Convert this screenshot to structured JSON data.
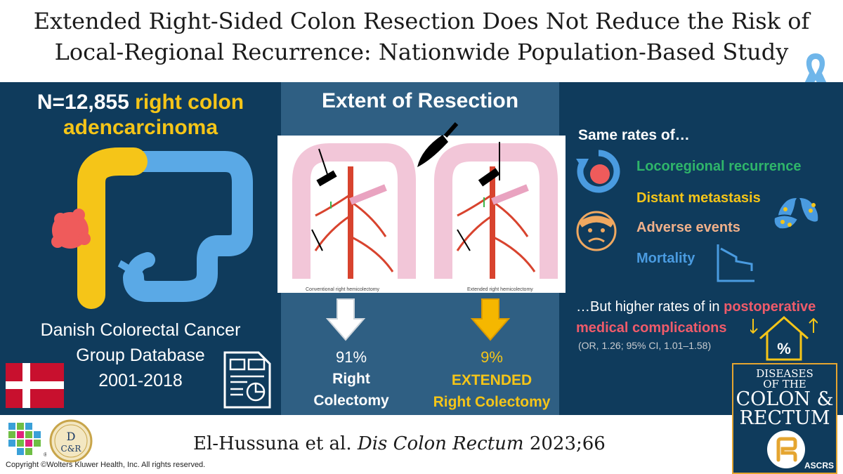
{
  "title": {
    "line1": "Extended Right-Sided Colon Resection Does Not Reduce the Risk of",
    "line2": "Local-Regional Recurrence: Nationwide Population-Based Study"
  },
  "left": {
    "n_label": "N=12,855",
    "n_highlight_line1": "right colon",
    "n_highlight_line2": "adencarcinoma",
    "db_line1": "Danish Colorectal Cancer",
    "db_line2": "Group Database",
    "db_line3": "2001-2018"
  },
  "center": {
    "title": "Extent of Resection",
    "caption_left": "Conventional right hemicolectomy",
    "caption_right": "Extended right hemicolectomy",
    "left_pct": "91%",
    "left_label_line1": "Right",
    "left_label_line2": "Colectomy",
    "right_pct": "9%",
    "right_label_line1": "EXTENDED",
    "right_label_line2": "Right Colectomy"
  },
  "right": {
    "same_rates": "Same rates of…",
    "outcomes": [
      {
        "label": "Locoregional recurrence",
        "color": "#2fb56a"
      },
      {
        "label": "Distant metastasis",
        "color": "#f5c518"
      },
      {
        "label": "Adverse events",
        "color": "#f0b08a"
      },
      {
        "label": "Mortality",
        "color": "#4a9be0"
      }
    ],
    "but_prefix": "…But higher rates of in",
    "but_highlight_line1": "postoperative",
    "but_highlight_line2": "medical complications",
    "or_text": "(OR, 1.26; 95% CI, 1.01–1.58)",
    "pct_symbol": "%"
  },
  "journal": {
    "line1": "DISEASES",
    "line2": "OF THE",
    "line3": "COLON &",
    "line4": "RECTUM",
    "society": "ASCRS"
  },
  "footer": {
    "citation_authors": "El-Hussuna et al.",
    "citation_journal": "Dis Colon Rectum",
    "citation_year": "2023;66",
    "copyright": "Copyright ©Wolters Kluwer Health, Inc. All rights reserved.",
    "logo_letters_top": "D",
    "logo_letters_bottom": "C&R",
    "reg_mark": "®"
  },
  "colors": {
    "navy": "#0f3b5c",
    "center_panel": "#2f5f83",
    "yellow": "#f5c518",
    "tumor": "#ef5b5b",
    "light_blue": "#4a9be0"
  }
}
